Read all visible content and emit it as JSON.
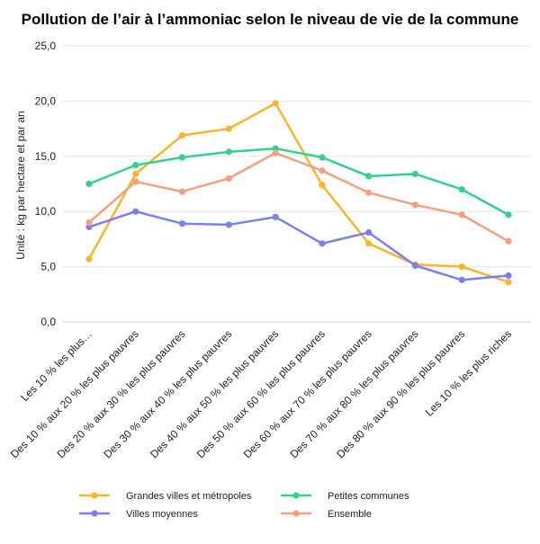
{
  "chart_data": {
    "type": "line",
    "title": "Pollution de l’air à l’ammoniac selon le niveau de vie de la commune",
    "ylabel": "Unité : kg par hectare et par an",
    "xlabel": "",
    "ylim": [
      0,
      25
    ],
    "yticks": [
      "0,0",
      "5,0",
      "10,0",
      "15,0",
      "20,0",
      "25,0"
    ],
    "grid": true,
    "legend_position": "bottom",
    "categories": [
      "Les 10 % les plus…",
      "Des 10 % aux 20 % les plus pauvres",
      "Des 20 % aux 30 % les plus pauvres",
      "Des 30 % aux 40 % les plus pauvres",
      "Des 40 % aux 50 % les plus pauvres",
      "Des 50 % aux 60 % les plus pauvres",
      "Des 60 % aux 70 % les plus pauvres",
      "Des 70 % aux 80 % les plus pauvres",
      "Des 80 % aux 90 % les plus pauvres",
      "Les 10 % les plus riches"
    ],
    "series": [
      {
        "name": "Grandes villes et métropoles",
        "color": "#f7b52c",
        "values": [
          5.7,
          13.4,
          16.9,
          17.5,
          19.8,
          12.4,
          7.1,
          5.2,
          5.0,
          3.6
        ]
      },
      {
        "name": "Petites communes",
        "color": "#33d18b",
        "values": [
          12.5,
          14.2,
          14.9,
          15.4,
          15.7,
          14.9,
          13.2,
          13.4,
          12.0,
          9.7
        ]
      },
      {
        "name": "Villes moyennes",
        "color": "#7b7fef",
        "values": [
          8.6,
          10.0,
          8.9,
          8.8,
          9.5,
          7.1,
          8.1,
          5.1,
          3.8,
          4.2
        ]
      },
      {
        "name": "Ensemble",
        "color": "#f4a07c",
        "values": [
          9.0,
          12.7,
          11.8,
          13.0,
          15.3,
          13.7,
          11.7,
          10.6,
          9.7,
          7.3
        ]
      }
    ]
  }
}
